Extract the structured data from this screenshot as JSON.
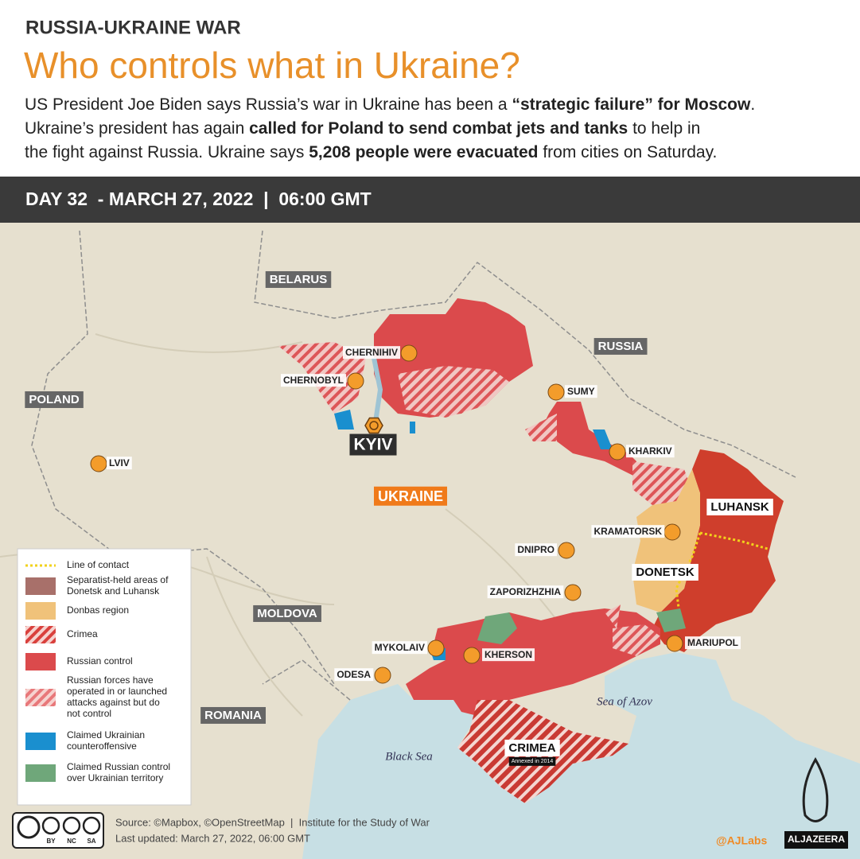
{
  "header": {
    "kicker": "RUSSIA-UKRAINE WAR",
    "title": "Who controls what in Ukraine?",
    "summary": [
      [
        {
          "text": "US President Joe Biden says Russia’s war in Ukraine has been a ",
          "bold": false
        },
        {
          "text": "“strategic failure” for Moscow",
          "bold": true
        },
        {
          "text": ".",
          "bold": false
        }
      ],
      [
        {
          "text": "Ukraine’s president has again ",
          "bold": false
        },
        {
          "text": "called for Poland to send combat jets and tanks",
          "bold": true
        },
        {
          "text": " to help in",
          "bold": false
        }
      ],
      [
        {
          "text": "the fight against Russia. Ukraine says ",
          "bold": false
        },
        {
          "text": "5,208 people were evacuated",
          "bold": true
        },
        {
          "text": " from cities on Saturday.",
          "bold": false
        }
      ]
    ]
  },
  "date_bar": "DAY 32  - MARCH 27, 2022  |  06:00 GMT",
  "map": {
    "cities": [
      "CHERNIHIV",
      "CHERNOBYL",
      "KYIV",
      "SUMY",
      "KHARKIV",
      "LVIV",
      "KRAMATORSK",
      "DNIPRO",
      "ZAPORIZHZHIA",
      "MYKOLAIV",
      "KHERSON",
      "MARIUPOL",
      "ODESA"
    ],
    "areas": [
      "BELARUS",
      "RUSSIA",
      "POLAND",
      "MOLDOVA",
      "ROMANIA",
      "UKRAINE",
      "LUHANSK",
      "DONETSK",
      "CRIMEA"
    ],
    "annotation": "Annexed in 2014",
    "seas": [
      "Sea of Azov",
      "Black Sea"
    ]
  },
  "legend": [
    {
      "label": [
        "Line of contact"
      ],
      "swatch": "line",
      "color": "#f2d21b"
    },
    {
      "label": [
        "Separatist-held areas of",
        "Donetsk and Luhansk"
      ],
      "swatch": "fill",
      "color": "#a8706a"
    },
    {
      "label": [
        "Donbas region"
      ],
      "swatch": "fill",
      "color": "#f0c27a"
    },
    {
      "label": [
        "Crimea"
      ],
      "swatch": "hatch",
      "color": "#d9413d"
    },
    {
      "label": [
        "Russian control"
      ],
      "swatch": "fill",
      "color": "#db4a4c"
    },
    {
      "label": [
        "Russian forces have",
        "operated in or launched",
        "attacks against but do",
        "not control"
      ],
      "swatch": "hatch",
      "color": "#e8787a"
    },
    {
      "label": [
        "Claimed Ukrainian",
        "counteroffensive"
      ],
      "swatch": "fill",
      "color": "#1a8fcf"
    },
    {
      "label": [
        "Claimed Russian control",
        "over Ukrainian territory"
      ],
      "swatch": "fill",
      "color": "#6fa77a"
    }
  ],
  "footer": {
    "source": "Source: ©Mapbox, ©OpenStreetMap  |  Institute for the Study of War",
    "updated": "Last updated: March 27, 2022, 06:00 GMT",
    "credit": "@AJLabs",
    "brand": "ALJAZEERA",
    "license": [
      "BY",
      "NC",
      "SA"
    ]
  }
}
